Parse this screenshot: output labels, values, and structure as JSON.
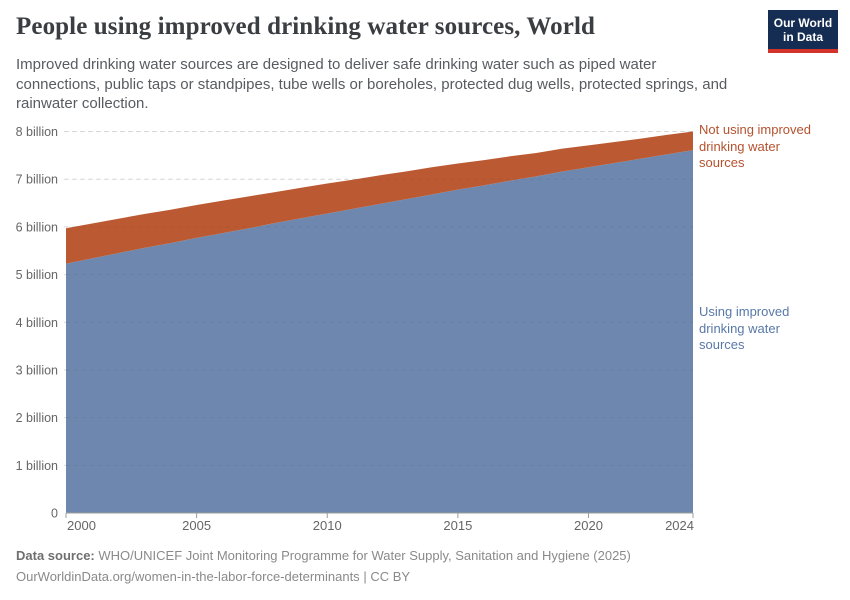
{
  "header": {
    "title": "People using improved drinking water sources, World",
    "subtitle": "Improved drinking water sources are designed to deliver safe drinking water such as piped water connections, public taps or standpipes, tube wells or boreholes, protected dug wells, protected springs, and rainwater collection."
  },
  "logo": {
    "line1": "Our World",
    "line2": "in Data",
    "bg_color": "#152d52",
    "accent_color": "#d2342c",
    "text_color": "#ffffff"
  },
  "chart_data": {
    "type": "area",
    "stacked": true,
    "title": "People using improved drinking water sources, World",
    "x": [
      2000,
      2001,
      2002,
      2003,
      2004,
      2005,
      2006,
      2007,
      2008,
      2009,
      2010,
      2011,
      2012,
      2013,
      2014,
      2015,
      2016,
      2017,
      2018,
      2019,
      2020,
      2021,
      2022,
      2023,
      2024
    ],
    "series": [
      {
        "name": "Using improved drinking water sources",
        "unit": "billion people",
        "color": "#6d87ae",
        "label_color": "#5878a8",
        "values": [
          5.23,
          5.34,
          5.45,
          5.56,
          5.66,
          5.77,
          5.87,
          5.97,
          6.08,
          6.18,
          6.28,
          6.38,
          6.48,
          6.58,
          6.68,
          6.78,
          6.87,
          6.97,
          7.06,
          7.16,
          7.25,
          7.34,
          7.43,
          7.52,
          7.61
        ]
      },
      {
        "name": "Not using improved drinking water sources",
        "unit": "billion people",
        "color": "#bb5a32",
        "label_color": "#b5522e",
        "values": [
          0.74,
          0.73,
          0.72,
          0.71,
          0.7,
          0.69,
          0.68,
          0.67,
          0.65,
          0.64,
          0.63,
          0.61,
          0.6,
          0.58,
          0.57,
          0.55,
          0.53,
          0.51,
          0.49,
          0.48,
          0.46,
          0.44,
          0.42,
          0.41,
          0.39
        ]
      }
    ],
    "ylim": [
      0,
      8
    ],
    "yticks": [
      {
        "value": 0,
        "label": "0"
      },
      {
        "value": 1,
        "label": "1 billion"
      },
      {
        "value": 2,
        "label": "2 billion"
      },
      {
        "value": 3,
        "label": "3 billion"
      },
      {
        "value": 4,
        "label": "4 billion"
      },
      {
        "value": 5,
        "label": "5 billion"
      },
      {
        "value": 6,
        "label": "6 billion"
      },
      {
        "value": 7,
        "label": "7 billion"
      },
      {
        "value": 8,
        "label": "8 billion"
      }
    ],
    "xticks": [
      {
        "value": 2000,
        "label": "2000"
      },
      {
        "value": 2005,
        "label": "2005"
      },
      {
        "value": 2010,
        "label": "2010"
      },
      {
        "value": 2015,
        "label": "2015"
      },
      {
        "value": 2020,
        "label": "2020"
      },
      {
        "value": 2024,
        "label": "2024"
      }
    ],
    "grid": "horizontal-dashed",
    "legend": "inline-right-annotations",
    "axis_text_color": "#666666",
    "grid_color": "#dcdcdc",
    "axis_line_color": "#9c9c9c"
  },
  "footer": {
    "datasource_label": "Data source:",
    "datasource_text": "WHO/UNICEF Joint Monitoring Programme for Water Supply, Sanitation and Hygiene (2025)",
    "url": "OurWorldinData.org/women-in-the-labor-force-determinants",
    "separator": "|",
    "license": "CC BY"
  }
}
